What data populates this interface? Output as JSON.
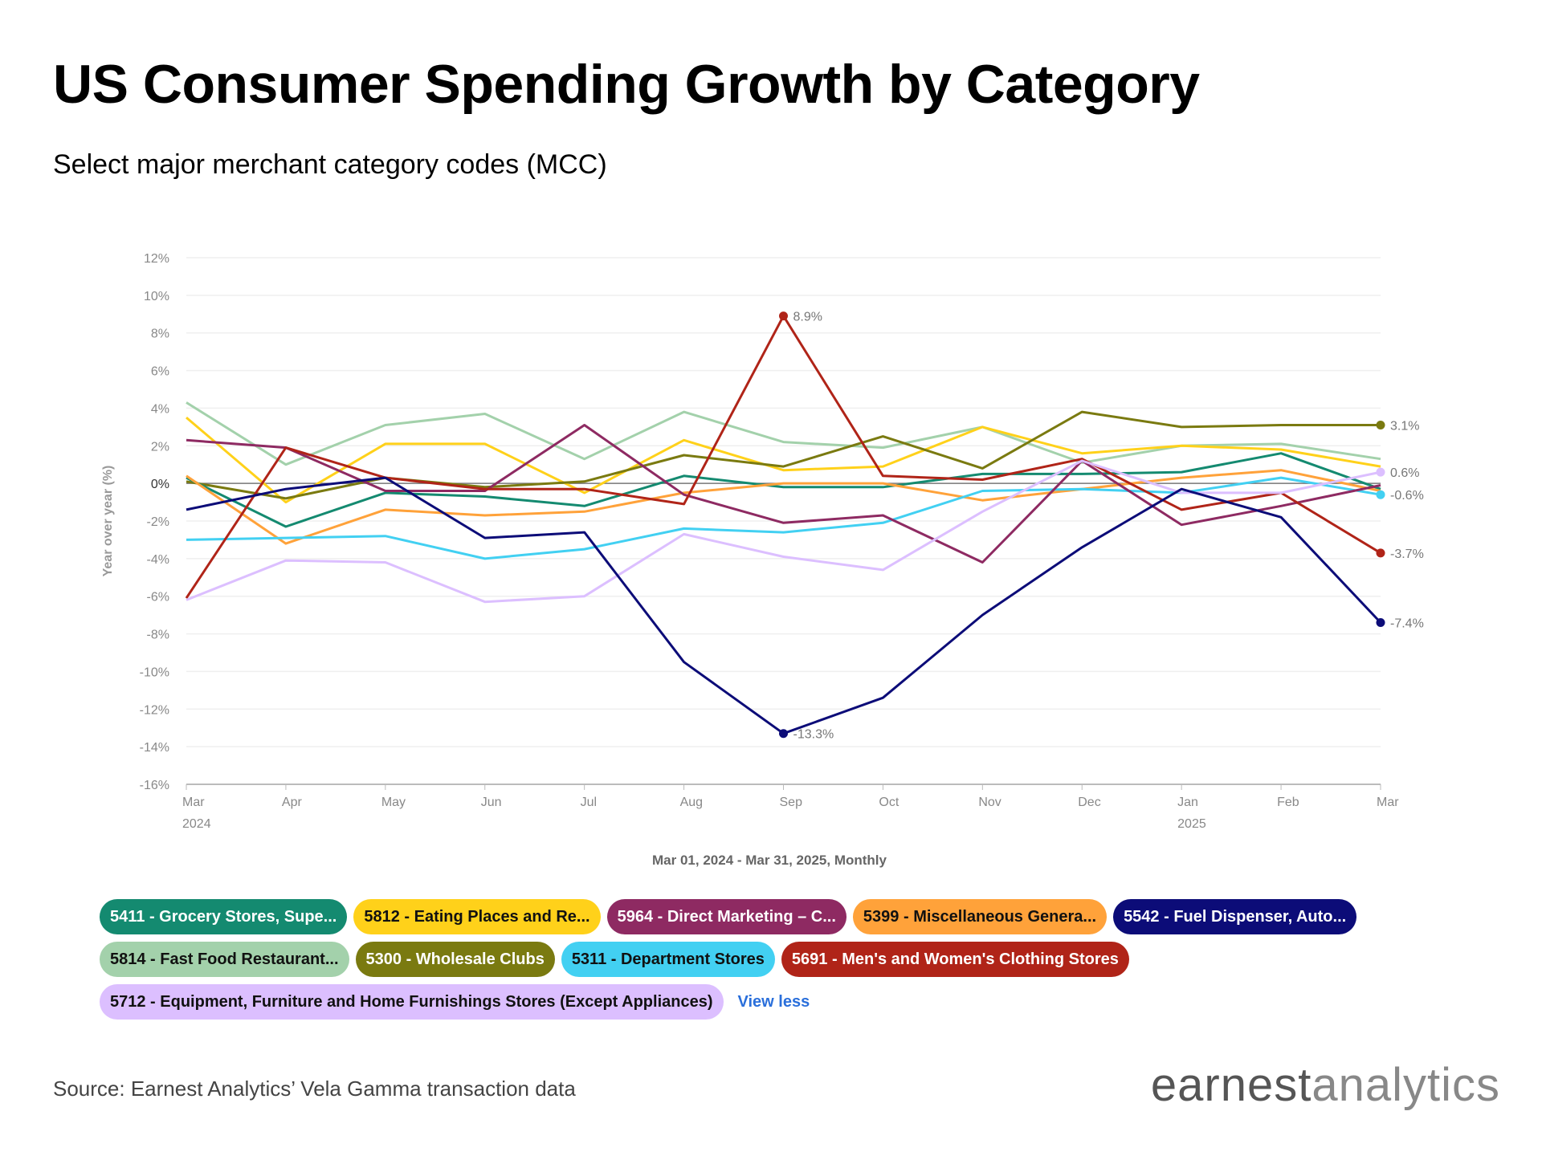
{
  "header": {
    "title": "US Consumer Spending Growth by Category",
    "subtitle": "Select major merchant category codes (MCC)"
  },
  "chart_data": {
    "type": "line",
    "ylabel": "Year over year (%)",
    "xlabel": "Mar 01, 2024 - Mar 31, 2025, Monthly",
    "ylim": [
      -16,
      12
    ],
    "yticks": [
      12,
      10,
      8,
      6,
      4,
      2,
      0,
      -2,
      -4,
      -6,
      -8,
      -10,
      -12,
      -14,
      -16
    ],
    "ytick_labels": [
      "12%",
      "10%",
      "8%",
      "6%",
      "4%",
      "2%",
      "0%",
      "-2%",
      "-4%",
      "-6%",
      "-8%",
      "-10%",
      "-12%",
      "-14%",
      "-16%"
    ],
    "categories": [
      "Mar",
      "Apr",
      "May",
      "Jun",
      "Jul",
      "Aug",
      "Sep",
      "Oct",
      "Nov",
      "Dec",
      "Jan",
      "Feb",
      "Mar"
    ],
    "year_labels": [
      {
        "index": 0,
        "label": "2024"
      },
      {
        "index": 10,
        "label": "2025"
      }
    ],
    "grid": true,
    "series": [
      {
        "name": "5814 - Fast Food Restaurant...",
        "color": "#a3d1ab",
        "text_color": "#111111",
        "values": [
          4.3,
          1.0,
          3.1,
          3.7,
          1.3,
          3.8,
          2.2,
          1.9,
          3.0,
          1.1,
          2.0,
          2.1,
          1.3
        ],
        "labels": []
      },
      {
        "name": "5812 - Eating Places and Re...",
        "color": "#ffd11a",
        "text_color": "#111111",
        "values": [
          3.5,
          -1.0,
          2.1,
          2.1,
          -0.5,
          2.3,
          0.7,
          0.9,
          3.0,
          1.6,
          2.0,
          1.8,
          0.9
        ],
        "labels": []
      },
      {
        "name": "5300 - Wholesale Clubs",
        "color": "#7a7a10",
        "text_color": "#ffffff",
        "values": [
          0.1,
          -0.8,
          0.3,
          -0.2,
          0.1,
          1.5,
          0.9,
          2.5,
          0.8,
          3.8,
          3.0,
          3.1,
          3.1
        ],
        "labels": [
          {
            "index": 12,
            "text": "3.1%"
          }
        ]
      },
      {
        "name": "5411 - Grocery Stores, Supe...",
        "color": "#148a70",
        "text_color": "#ffffff",
        "values": [
          0.3,
          -2.3,
          -0.5,
          -0.7,
          -1.2,
          0.4,
          -0.2,
          -0.2,
          0.5,
          0.5,
          0.6,
          1.6,
          -0.3
        ],
        "labels": []
      },
      {
        "name": "5399 - Miscellaneous Genera...",
        "color": "#ffa23a",
        "text_color": "#111111",
        "values": [
          0.4,
          -3.2,
          -1.4,
          -1.7,
          -1.5,
          -0.5,
          0.0,
          0.0,
          -0.9,
          -0.3,
          0.3,
          0.7,
          -0.4
        ],
        "labels": []
      },
      {
        "name": "5311 - Department Stores",
        "color": "#42d0f2",
        "text_color": "#111111",
        "values": [
          -3.0,
          -2.9,
          -2.8,
          -4.0,
          -3.5,
          -2.4,
          -2.6,
          -2.1,
          -0.4,
          -0.3,
          -0.5,
          0.3,
          -0.6
        ],
        "labels": [
          {
            "index": 12,
            "text": "-0.6%"
          }
        ]
      },
      {
        "name": "5964 - Direct Marketing – C...",
        "color": "#8e2a62",
        "text_color": "#ffffff",
        "values": [
          2.3,
          1.9,
          -0.4,
          -0.4,
          3.1,
          -0.6,
          -2.1,
          -1.7,
          -4.2,
          1.2,
          -2.2,
          -1.2,
          -0.1
        ],
        "labels": []
      },
      {
        "name": "5691 - Men's and Women's Clothing Stores",
        "color": "#b02418",
        "text_color": "#ffffff",
        "values": [
          -6.1,
          1.9,
          0.3,
          -0.3,
          -0.3,
          -1.1,
          8.9,
          0.4,
          0.2,
          1.3,
          -1.4,
          -0.5,
          -3.7
        ],
        "labels": [
          {
            "index": 6,
            "text": "8.9%"
          },
          {
            "index": 12,
            "text": "-3.7%"
          }
        ]
      },
      {
        "name": "5712 - Equipment, Furniture and Home Furnishings Stores (Except Appliances)",
        "color": "#dcbfff",
        "text_color": "#111111",
        "values": [
          -6.2,
          -4.1,
          -4.2,
          -6.3,
          -6.0,
          -2.7,
          -3.9,
          -4.6,
          -1.5,
          1.2,
          -0.5,
          -0.5,
          0.6
        ],
        "labels": [
          {
            "index": 12,
            "text": "0.6%"
          }
        ]
      },
      {
        "name": "5542 - Fuel Dispenser, Auto...",
        "color": "#0c0c78",
        "text_color": "#ffffff",
        "values": [
          -1.4,
          -0.3,
          0.3,
          -2.9,
          -2.6,
          -9.5,
          -13.3,
          -11.4,
          -7.0,
          -3.4,
          -0.3,
          -1.8,
          -7.4
        ],
        "labels": [
          {
            "index": 6,
            "text": "-13.3%"
          },
          {
            "index": 12,
            "text": "-7.4%"
          }
        ]
      }
    ]
  },
  "legend": {
    "rows": [
      [
        3,
        1,
        6,
        4,
        9
      ],
      [
        0,
        2,
        5,
        7
      ],
      [
        8
      ]
    ],
    "view_less": "View less"
  },
  "footer": {
    "source": "Source: Earnest Analytics’ Vela Gamma transaction data",
    "logo_part1": "earnest",
    "logo_part2": "analytics"
  }
}
